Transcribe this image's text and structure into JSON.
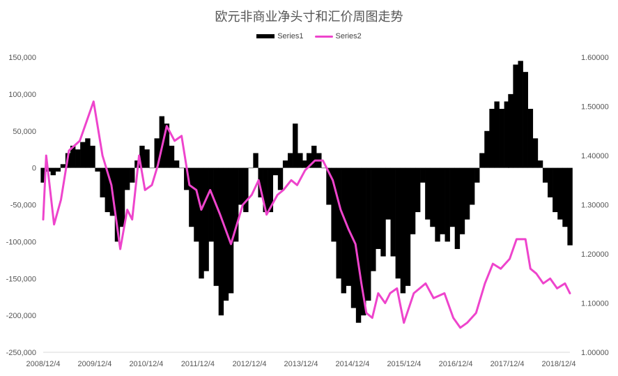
{
  "chart_data": {
    "type": "bar",
    "title": "欧元非商业净头寸和汇价周图走势",
    "series": [
      {
        "name": "Series1",
        "type": "bar",
        "axis": "left",
        "color": "#000000",
        "points": [
          [
            "2008/12/4",
            -20000
          ],
          [
            "2009/1/8",
            -5000
          ],
          [
            "2009/2/12",
            -10000
          ],
          [
            "2009/3/19",
            -5000
          ],
          [
            "2009/4/23",
            5000
          ],
          [
            "2009/5/28",
            20000
          ],
          [
            "2009/7/2",
            30000
          ],
          [
            "2009/8/6",
            25000
          ],
          [
            "2009/9/10",
            35000
          ],
          [
            "2009/10/15",
            40000
          ],
          [
            "2009/11/19",
            30000
          ],
          [
            "2009/12/24",
            -5000
          ],
          [
            "2010/1/28",
            -40000
          ],
          [
            "2010/3/4",
            -60000
          ],
          [
            "2010/4/8",
            -65000
          ],
          [
            "2010/5/13",
            -100000
          ],
          [
            "2010/6/17",
            -80000
          ],
          [
            "2010/7/22",
            -30000
          ],
          [
            "2010/8/26",
            -20000
          ],
          [
            "2010/9/30",
            10000
          ],
          [
            "2010/11/4",
            30000
          ],
          [
            "2010/12/9",
            25000
          ],
          [
            "2011/1/13",
            0
          ],
          [
            "2011/2/17",
            40000
          ],
          [
            "2011/3/24",
            70000
          ],
          [
            "2011/4/28",
            60000
          ],
          [
            "2011/6/2",
            30000
          ],
          [
            "2011/7/7",
            10000
          ],
          [
            "2011/8/11",
            0
          ],
          [
            "2011/9/15",
            -30000
          ],
          [
            "2011/10/20",
            -80000
          ],
          [
            "2011/11/24",
            -100000
          ],
          [
            "2011/12/29",
            -150000
          ],
          [
            "2012/2/2",
            -140000
          ],
          [
            "2012/3/8",
            -100000
          ],
          [
            "2012/4/12",
            -160000
          ],
          [
            "2012/5/17",
            -200000
          ],
          [
            "2012/6/21",
            -180000
          ],
          [
            "2012/7/26",
            -170000
          ],
          [
            "2012/8/30",
            -100000
          ],
          [
            "2012/10/4",
            -50000
          ],
          [
            "2012/11/8",
            -60000
          ],
          [
            "2012/12/13",
            0
          ],
          [
            "2013/1/17",
            20000
          ],
          [
            "2013/2/21",
            -40000
          ],
          [
            "2013/3/28",
            -60000
          ],
          [
            "2013/5/2",
            -60000
          ],
          [
            "2013/6/6",
            -10000
          ],
          [
            "2013/7/11",
            -30000
          ],
          [
            "2013/8/15",
            10000
          ],
          [
            "2013/9/19",
            20000
          ],
          [
            "2013/10/24",
            60000
          ],
          [
            "2013/11/28",
            20000
          ],
          [
            "2013/12/26",
            10000
          ],
          [
            "2014/1/30",
            20000
          ],
          [
            "2014/3/6",
            30000
          ],
          [
            "2014/4/10",
            20000
          ],
          [
            "2014/5/15",
            0
          ],
          [
            "2014/6/19",
            -50000
          ],
          [
            "2014/7/24",
            -100000
          ],
          [
            "2014/8/28",
            -150000
          ],
          [
            "2014/10/2",
            -170000
          ],
          [
            "2014/11/6",
            -160000
          ],
          [
            "2014/12/11",
            -190000
          ],
          [
            "2015/1/15",
            -210000
          ],
          [
            "2015/2/19",
            -200000
          ],
          [
            "2015/3/26",
            -180000
          ],
          [
            "2015/4/30",
            -140000
          ],
          [
            "2015/6/4",
            -110000
          ],
          [
            "2015/7/9",
            -120000
          ],
          [
            "2015/8/13",
            -70000
          ],
          [
            "2015/9/17",
            -120000
          ],
          [
            "2015/10/22",
            -150000
          ],
          [
            "2015/11/26",
            -170000
          ],
          [
            "2015/12/31",
            -160000
          ],
          [
            "2016/2/4",
            -90000
          ],
          [
            "2016/3/10",
            -60000
          ],
          [
            "2016/4/14",
            -20000
          ],
          [
            "2016/5/19",
            -70000
          ],
          [
            "2016/6/23",
            -80000
          ],
          [
            "2016/7/28",
            -100000
          ],
          [
            "2016/9/1",
            -90000
          ],
          [
            "2016/10/6",
            -100000
          ],
          [
            "2016/11/10",
            -80000
          ],
          [
            "2016/12/15",
            -110000
          ],
          [
            "2017/1/19",
            -90000
          ],
          [
            "2017/2/23",
            -70000
          ],
          [
            "2017/3/30",
            -50000
          ],
          [
            "2017/5/4",
            -20000
          ],
          [
            "2017/6/8",
            20000
          ],
          [
            "2017/7/13",
            50000
          ],
          [
            "2017/8/17",
            80000
          ],
          [
            "2017/9/21",
            90000
          ],
          [
            "2017/10/26",
            80000
          ],
          [
            "2017/11/30",
            90000
          ],
          [
            "2017/12/28",
            100000
          ],
          [
            "2018/2/1",
            140000
          ],
          [
            "2018/3/8",
            145000
          ],
          [
            "2018/4/12",
            130000
          ],
          [
            "2018/5/17",
            80000
          ],
          [
            "2018/6/21",
            40000
          ],
          [
            "2018/7/26",
            10000
          ],
          [
            "2018/8/30",
            -20000
          ],
          [
            "2018/10/4",
            -40000
          ],
          [
            "2018/11/8",
            -60000
          ],
          [
            "2018/12/13",
            -70000
          ],
          [
            "2019/1/17",
            -80000
          ],
          [
            "2019/2/21",
            -105000
          ]
        ]
      },
      {
        "name": "Series2",
        "type": "line",
        "axis": "right",
        "color": "#ee44cc",
        "points": [
          [
            "2008/12/4",
            1.27
          ],
          [
            "2008/12/25",
            1.4
          ],
          [
            "2009/2/19",
            1.26
          ],
          [
            "2009/4/9",
            1.31
          ],
          [
            "2009/6/4",
            1.41
          ],
          [
            "2009/8/20",
            1.43
          ],
          [
            "2009/10/8",
            1.47
          ],
          [
            "2009/11/26",
            1.51
          ],
          [
            "2010/1/28",
            1.4
          ],
          [
            "2010/4/1",
            1.34
          ],
          [
            "2010/6/3",
            1.21
          ],
          [
            "2010/7/22",
            1.29
          ],
          [
            "2010/8/26",
            1.27
          ],
          [
            "2010/10/14",
            1.4
          ],
          [
            "2010/11/25",
            1.33
          ],
          [
            "2011/1/13",
            1.34
          ],
          [
            "2011/2/24",
            1.38
          ],
          [
            "2011/4/28",
            1.46
          ],
          [
            "2011/6/23",
            1.43
          ],
          [
            "2011/8/11",
            1.44
          ],
          [
            "2011/10/6",
            1.34
          ],
          [
            "2011/11/24",
            1.33
          ],
          [
            "2011/12/29",
            1.29
          ],
          [
            "2012/3/1",
            1.33
          ],
          [
            "2012/5/10",
            1.28
          ],
          [
            "2012/7/26",
            1.22
          ],
          [
            "2012/9/6",
            1.26
          ],
          [
            "2012/10/18",
            1.3
          ],
          [
            "2012/12/20",
            1.32
          ],
          [
            "2013/2/7",
            1.35
          ],
          [
            "2013/4/4",
            1.28
          ],
          [
            "2013/6/20",
            1.32
          ],
          [
            "2013/8/1",
            1.33
          ],
          [
            "2013/9/26",
            1.35
          ],
          [
            "2013/11/7",
            1.34
          ],
          [
            "2014/1/2",
            1.37
          ],
          [
            "2014/3/13",
            1.39
          ],
          [
            "2014/5/8",
            1.39
          ],
          [
            "2014/7/17",
            1.35
          ],
          [
            "2014/9/11",
            1.29
          ],
          [
            "2014/11/6",
            1.25
          ],
          [
            "2014/12/25",
            1.22
          ],
          [
            "2015/2/5",
            1.14
          ],
          [
            "2015/3/12",
            1.08
          ],
          [
            "2015/4/23",
            1.07
          ],
          [
            "2015/6/4",
            1.12
          ],
          [
            "2015/7/23",
            1.1
          ],
          [
            "2015/8/27",
            1.12
          ],
          [
            "2015/10/15",
            1.13
          ],
          [
            "2015/12/3",
            1.06
          ],
          [
            "2016/2/11",
            1.12
          ],
          [
            "2016/5/5",
            1.14
          ],
          [
            "2016/6/30",
            1.11
          ],
          [
            "2016/9/15",
            1.12
          ],
          [
            "2016/11/17",
            1.07
          ],
          [
            "2017/1/5",
            1.05
          ],
          [
            "2017/2/23",
            1.06
          ],
          [
            "2017/4/27",
            1.08
          ],
          [
            "2017/6/29",
            1.14
          ],
          [
            "2017/8/24",
            1.18
          ],
          [
            "2017/10/19",
            1.17
          ],
          [
            "2017/12/21",
            1.19
          ],
          [
            "2018/2/8",
            1.23
          ],
          [
            "2018/4/12",
            1.23
          ],
          [
            "2018/5/17",
            1.17
          ],
          [
            "2018/6/28",
            1.16
          ],
          [
            "2018/8/16",
            1.14
          ],
          [
            "2018/10/4",
            1.15
          ],
          [
            "2018/11/22",
            1.13
          ],
          [
            "2019/1/17",
            1.14
          ],
          [
            "2019/2/21",
            1.12
          ]
        ]
      }
    ],
    "y_left": {
      "lim": [
        -250000,
        150000
      ],
      "ticks": [
        "150,000",
        "100,000",
        "50,000",
        "0",
        "-50,000",
        "-100,000",
        "-150,000",
        "-200,000",
        "-250,000"
      ],
      "values": [
        150000,
        100000,
        50000,
        0,
        -50000,
        -100000,
        -150000,
        -200000,
        -250000
      ]
    },
    "y_right": {
      "lim": [
        1.0,
        1.6
      ],
      "ticks": [
        "1.60000",
        "1.50000",
        "1.40000",
        "1.30000",
        "1.20000",
        "1.10000",
        "1.00000"
      ],
      "values": [
        1.6,
        1.5,
        1.4,
        1.3,
        1.2,
        1.1,
        1.0
      ]
    },
    "x_ticks": [
      "2008/12/4",
      "2009/12/4",
      "2010/12/4",
      "2011/12/4",
      "2012/12/4",
      "2013/12/4",
      "2014/12/4",
      "2015/12/4",
      "2016/12/4",
      "2017/12/4",
      "2018/12/4"
    ],
    "x_range": [
      "2008/12/4",
      "2019/2/21"
    ],
    "legend": {
      "position": "top-center"
    },
    "grid": false
  }
}
